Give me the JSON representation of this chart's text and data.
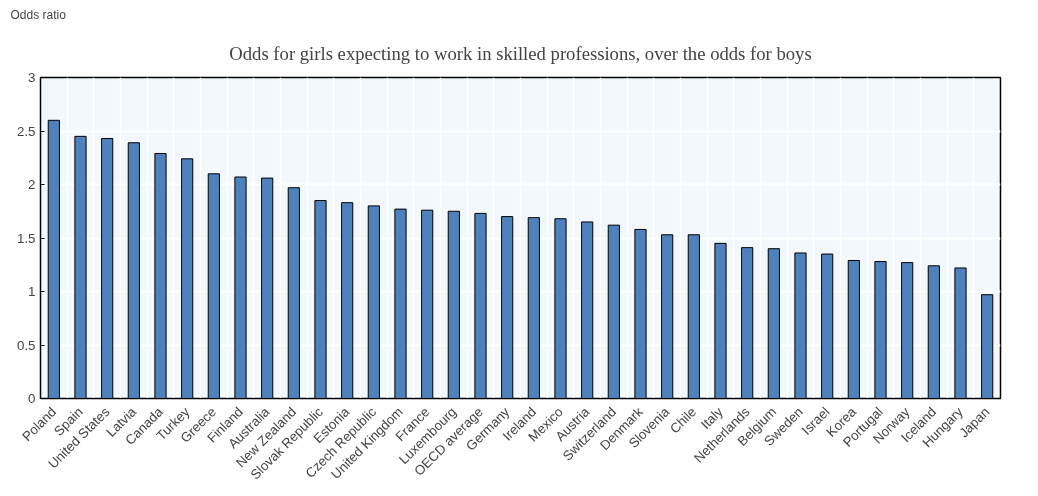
{
  "chart_data": {
    "type": "bar",
    "title": "Odds for girls expecting to work in skilled professions, over the odds for boys",
    "ylabel": "Odds ratio",
    "categories": [
      "Poland",
      "Spain",
      "United States",
      "Latvia",
      "Canada",
      "Turkey",
      "Greece",
      "Finland",
      "Australia",
      "New Zealand",
      "Slovak Republic",
      "Estonia",
      "Czech Republic",
      "United Kingdom",
      "France",
      "Luxembourg",
      "OECD average",
      "Germany",
      "Ireland",
      "Mexico",
      "Austria",
      "Switzerland",
      "Denmark",
      "Slovenia",
      "Chile",
      "Italy",
      "Netherlands",
      "Belgium",
      "Sweden",
      "Israel",
      "Korea",
      "Portugal",
      "Norway",
      "Iceland",
      "Hungary",
      "Japan"
    ],
    "values": [
      2.6,
      2.45,
      2.43,
      2.39,
      2.29,
      2.24,
      2.1,
      2.07,
      2.06,
      1.97,
      1.85,
      1.83,
      1.8,
      1.77,
      1.76,
      1.75,
      1.73,
      1.7,
      1.69,
      1.68,
      1.65,
      1.62,
      1.58,
      1.53,
      1.53,
      1.45,
      1.41,
      1.4,
      1.36,
      1.35,
      1.29,
      1.28,
      1.27,
      1.24,
      1.22,
      0.97
    ],
    "color": "#4f81bd",
    "ylim": [
      0,
      3
    ],
    "yticks": [
      0,
      0.5,
      1,
      1.5,
      2,
      2.5,
      3
    ],
    "grid": true
  }
}
